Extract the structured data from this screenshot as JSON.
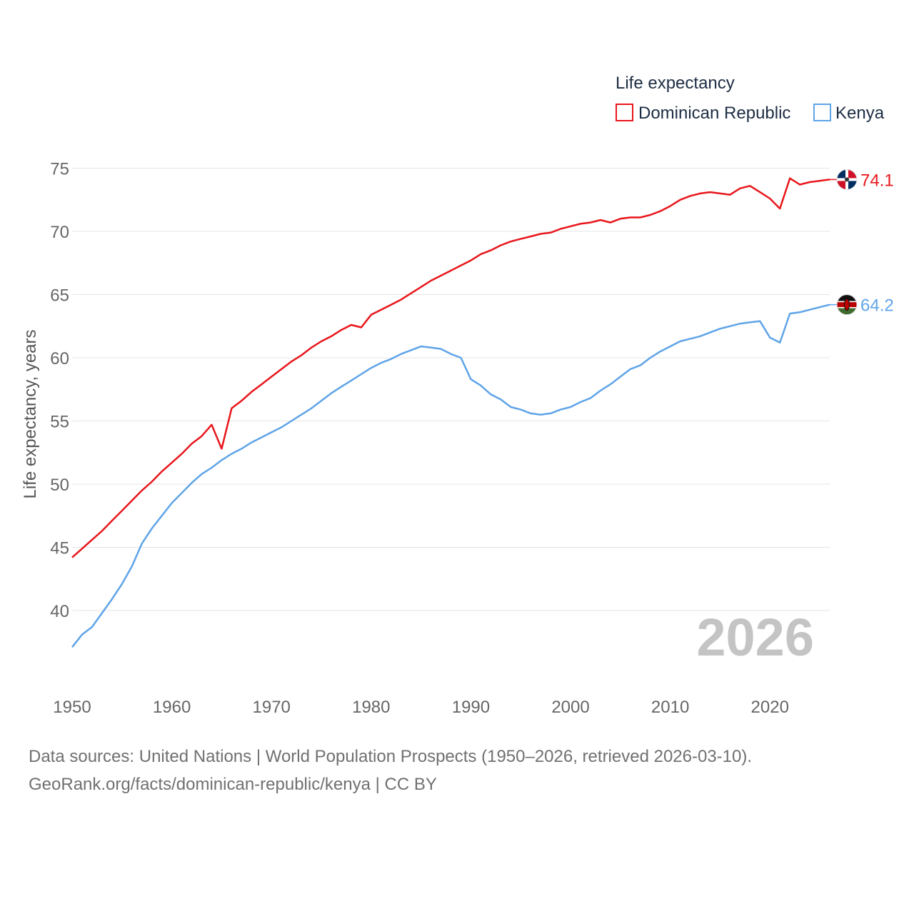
{
  "chart_data": {
    "type": "line",
    "title": "Life expectancy",
    "ylabel": "Life expectancy, years",
    "xlabel": "",
    "xlim": [
      1950,
      2026
    ],
    "ylim": [
      34,
      76
    ],
    "yticks": [
      40,
      45,
      50,
      55,
      60,
      65,
      70,
      75
    ],
    "xticks": [
      1950,
      1960,
      1970,
      1980,
      1990,
      2000,
      2010,
      2020
    ],
    "grid": true,
    "legend_position": "top-right",
    "year_label": "2026",
    "series": [
      {
        "name": "Dominican Republic",
        "color": "#e8161b",
        "end_label": "74.1",
        "flag": "dominican-republic-flag-icon",
        "points": [
          [
            1950,
            44.2
          ],
          [
            1951,
            44.9
          ],
          [
            1952,
            45.6
          ],
          [
            1953,
            46.3
          ],
          [
            1954,
            47.1
          ],
          [
            1955,
            47.9
          ],
          [
            1956,
            48.7
          ],
          [
            1957,
            49.5
          ],
          [
            1958,
            50.2
          ],
          [
            1959,
            51.0
          ],
          [
            1960,
            51.7
          ],
          [
            1961,
            52.4
          ],
          [
            1962,
            53.2
          ],
          [
            1963,
            53.8
          ],
          [
            1964,
            54.7
          ],
          [
            1965,
            52.8
          ],
          [
            1966,
            56.0
          ],
          [
            1967,
            56.6
          ],
          [
            1968,
            57.3
          ],
          [
            1969,
            57.9
          ],
          [
            1970,
            58.5
          ],
          [
            1971,
            59.1
          ],
          [
            1972,
            59.7
          ],
          [
            1973,
            60.2
          ],
          [
            1974,
            60.8
          ],
          [
            1975,
            61.3
          ],
          [
            1976,
            61.7
          ],
          [
            1977,
            62.2
          ],
          [
            1978,
            62.6
          ],
          [
            1979,
            62.4
          ],
          [
            1980,
            63.4
          ],
          [
            1981,
            63.8
          ],
          [
            1982,
            64.2
          ],
          [
            1983,
            64.6
          ],
          [
            1984,
            65.1
          ],
          [
            1985,
            65.6
          ],
          [
            1986,
            66.1
          ],
          [
            1987,
            66.5
          ],
          [
            1988,
            66.9
          ],
          [
            1989,
            67.3
          ],
          [
            1990,
            67.7
          ],
          [
            1991,
            68.2
          ],
          [
            1992,
            68.5
          ],
          [
            1993,
            68.9
          ],
          [
            1994,
            69.2
          ],
          [
            1995,
            69.4
          ],
          [
            1996,
            69.6
          ],
          [
            1997,
            69.8
          ],
          [
            1998,
            69.9
          ],
          [
            1999,
            70.2
          ],
          [
            2000,
            70.4
          ],
          [
            2001,
            70.6
          ],
          [
            2002,
            70.7
          ],
          [
            2003,
            70.9
          ],
          [
            2004,
            70.7
          ],
          [
            2005,
            71.0
          ],
          [
            2006,
            71.1
          ],
          [
            2007,
            71.1
          ],
          [
            2008,
            71.3
          ],
          [
            2009,
            71.6
          ],
          [
            2010,
            72.0
          ],
          [
            2011,
            72.5
          ],
          [
            2012,
            72.8
          ],
          [
            2013,
            73.0
          ],
          [
            2014,
            73.1
          ],
          [
            2015,
            73.0
          ],
          [
            2016,
            72.9
          ],
          [
            2017,
            73.4
          ],
          [
            2018,
            73.6
          ],
          [
            2019,
            73.1
          ],
          [
            2020,
            72.6
          ],
          [
            2021,
            71.8
          ],
          [
            2022,
            74.2
          ],
          [
            2023,
            73.7
          ],
          [
            2024,
            73.9
          ],
          [
            2025,
            74.0
          ],
          [
            2026,
            74.1
          ]
        ]
      },
      {
        "name": "Kenya",
        "color": "#5fa4e8",
        "end_label": "64.2",
        "flag": "kenya-flag-icon",
        "points": [
          [
            1950,
            37.1
          ],
          [
            1951,
            38.1
          ],
          [
            1952,
            38.7
          ],
          [
            1953,
            39.8
          ],
          [
            1954,
            40.9
          ],
          [
            1955,
            42.1
          ],
          [
            1956,
            43.5
          ],
          [
            1957,
            45.3
          ],
          [
            1958,
            46.5
          ],
          [
            1959,
            47.5
          ],
          [
            1960,
            48.5
          ],
          [
            1961,
            49.3
          ],
          [
            1962,
            50.1
          ],
          [
            1963,
            50.8
          ],
          [
            1964,
            51.3
          ],
          [
            1965,
            51.9
          ],
          [
            1966,
            52.4
          ],
          [
            1967,
            52.8
          ],
          [
            1968,
            53.3
          ],
          [
            1969,
            53.7
          ],
          [
            1970,
            54.1
          ],
          [
            1971,
            54.5
          ],
          [
            1972,
            55.0
          ],
          [
            1973,
            55.5
          ],
          [
            1974,
            56.0
          ],
          [
            1975,
            56.6
          ],
          [
            1976,
            57.2
          ],
          [
            1977,
            57.7
          ],
          [
            1978,
            58.2
          ],
          [
            1979,
            58.7
          ],
          [
            1980,
            59.2
          ],
          [
            1981,
            59.6
          ],
          [
            1982,
            59.9
          ],
          [
            1983,
            60.3
          ],
          [
            1984,
            60.6
          ],
          [
            1985,
            60.9
          ],
          [
            1986,
            60.8
          ],
          [
            1987,
            60.7
          ],
          [
            1988,
            60.3
          ],
          [
            1989,
            60.0
          ],
          [
            1990,
            58.3
          ],
          [
            1991,
            57.8
          ],
          [
            1992,
            57.1
          ],
          [
            1993,
            56.7
          ],
          [
            1994,
            56.1
          ],
          [
            1995,
            55.9
          ],
          [
            1996,
            55.6
          ],
          [
            1997,
            55.5
          ],
          [
            1998,
            55.6
          ],
          [
            1999,
            55.9
          ],
          [
            2000,
            56.1
          ],
          [
            2001,
            56.5
          ],
          [
            2002,
            56.8
          ],
          [
            2003,
            57.4
          ],
          [
            2004,
            57.9
          ],
          [
            2005,
            58.5
          ],
          [
            2006,
            59.1
          ],
          [
            2007,
            59.4
          ],
          [
            2008,
            60.0
          ],
          [
            2009,
            60.5
          ],
          [
            2010,
            60.9
          ],
          [
            2011,
            61.3
          ],
          [
            2012,
            61.5
          ],
          [
            2013,
            61.7
          ],
          [
            2014,
            62.0
          ],
          [
            2015,
            62.3
          ],
          [
            2016,
            62.5
          ],
          [
            2017,
            62.7
          ],
          [
            2018,
            62.8
          ],
          [
            2019,
            62.9
          ],
          [
            2020,
            61.6
          ],
          [
            2021,
            61.2
          ],
          [
            2022,
            63.5
          ],
          [
            2023,
            63.6
          ],
          [
            2024,
            63.8
          ],
          [
            2025,
            64.0
          ],
          [
            2026,
            64.2
          ]
        ]
      }
    ]
  },
  "footer": {
    "source_line": "Data sources: United Nations | World Population Prospects (1950–2026, retrieved 2026-03-10).",
    "license_line": "GeoRank.org/facts/dominican-republic/kenya | CC BY"
  }
}
